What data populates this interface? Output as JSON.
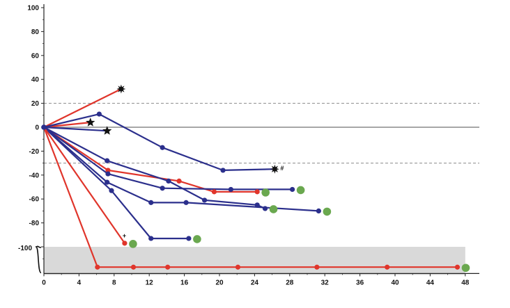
{
  "chart_data": {
    "type": "line",
    "title": "",
    "xlabel": "",
    "ylabel": "",
    "xlim": [
      0,
      50
    ],
    "ylim": [
      -120,
      100
    ],
    "x_ticks": [
      0,
      4,
      8,
      12,
      16,
      20,
      24,
      28,
      32,
      36,
      40,
      44,
      48
    ],
    "y_ticks": [
      100,
      80,
      60,
      40,
      20,
      0,
      -20,
      -40,
      -60,
      -80,
      -100
    ],
    "reference_lines": [
      {
        "y": 20,
        "style": "dashed",
        "color": "#8a8a8a"
      },
      {
        "y": 0,
        "style": "solid",
        "color": "#8a8a8a"
      },
      {
        "y": -30,
        "style": "dashed",
        "color": "#8a8a8a"
      }
    ],
    "shaded_band": {
      "y_from": -100,
      "y_to": -120,
      "color": "#d9d9d9",
      "x_to": 48
    },
    "bracket_label_y": -100,
    "colors": {
      "red": "#e0352b",
      "blue": "#2b2f8c",
      "green": "#6aa84f",
      "black": "#111111"
    },
    "series": [
      {
        "color": "red",
        "points": [
          [
            0,
            0
          ],
          [
            8.8,
            32
          ]
        ],
        "end_marker": "burst"
      },
      {
        "color": "red",
        "points": [
          [
            0,
            0
          ],
          [
            5.3,
            4
          ]
        ],
        "end_marker": "star"
      },
      {
        "color": "blue",
        "points": [
          [
            0,
            0
          ],
          [
            7.2,
            -3
          ]
        ],
        "end_marker": "star"
      },
      {
        "color": "blue",
        "points": [
          [
            0,
            0
          ],
          [
            6.3,
            11
          ],
          [
            13.5,
            -17
          ],
          [
            20.4,
            -36
          ],
          [
            26.3,
            -35
          ]
        ],
        "end_marker": "burst",
        "end_label": "#"
      },
      {
        "color": "red",
        "points": [
          [
            0,
            0
          ],
          [
            7.3,
            -36
          ],
          [
            15.4,
            -45
          ],
          [
            19.4,
            -54
          ],
          [
            24.3,
            -54
          ]
        ],
        "end_marker": "green"
      },
      {
        "color": "blue",
        "points": [
          [
            0,
            0
          ],
          [
            7.2,
            -28
          ],
          [
            14.2,
            -45
          ],
          [
            18.3,
            -61
          ],
          [
            24.3,
            -65
          ],
          [
            25.2,
            -68
          ]
        ],
        "end_marker": "green"
      },
      {
        "color": "blue",
        "points": [
          [
            0,
            0
          ],
          [
            7.3,
            -39
          ],
          [
            13.5,
            -51
          ],
          [
            21.3,
            -52
          ],
          [
            28.3,
            -52
          ]
        ],
        "end_marker": "green"
      },
      {
        "color": "blue",
        "points": [
          [
            0,
            0
          ],
          [
            7.2,
            -46
          ],
          [
            12.2,
            -63
          ],
          [
            16.2,
            -63
          ],
          [
            31.3,
            -70
          ]
        ],
        "end_marker": "green"
      },
      {
        "color": "blue",
        "points": [
          [
            0,
            0
          ],
          [
            7.7,
            -53
          ],
          [
            12.2,
            -93
          ],
          [
            16.5,
            -93
          ]
        ],
        "end_marker": "green"
      },
      {
        "color": "red",
        "points": [
          [
            0,
            0
          ],
          [
            9.2,
            -97
          ]
        ],
        "end_marker": "green",
        "end_label": "+"
      },
      {
        "color": "red",
        "points": [
          [
            0,
            0
          ],
          [
            6.1,
            -117
          ],
          [
            10.2,
            -117
          ],
          [
            14.1,
            -117
          ],
          [
            22.1,
            -117
          ],
          [
            31.1,
            -117
          ],
          [
            39.1,
            -117
          ],
          [
            47.1,
            -117
          ]
        ],
        "end_marker": "green"
      }
    ]
  }
}
